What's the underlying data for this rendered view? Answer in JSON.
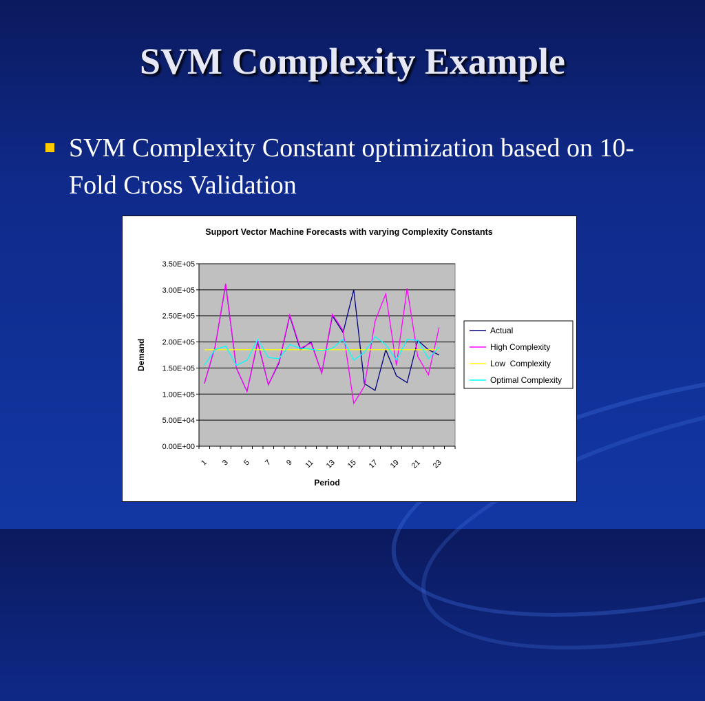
{
  "slide": {
    "title": "SVM Complexity Example",
    "bullets": [
      "SVM Complexity Constant optimization based on 10-Fold Cross Validation"
    ],
    "bullet_color": "#ffcc00"
  },
  "chart_data": {
    "type": "line",
    "title": "Support Vector Machine Forecasts with varying Complexity Constants",
    "xlabel": "Period",
    "ylabel": "Demand",
    "x": [
      1,
      2,
      3,
      4,
      5,
      6,
      7,
      8,
      9,
      10,
      11,
      12,
      13,
      14,
      15,
      16,
      17,
      18,
      19,
      20,
      21,
      22,
      23,
      24
    ],
    "x_tick_labels": [
      "1",
      "3",
      "5",
      "7",
      "9",
      "11",
      "13",
      "15",
      "17",
      "19",
      "21",
      "23"
    ],
    "y_tick_labels": [
      "0.00E+00",
      "5.00E+04",
      "1.00E+05",
      "1.50E+05",
      "2.00E+05",
      "2.50E+05",
      "3.00E+05",
      "3.50E+05"
    ],
    "ylim": [
      0,
      350000
    ],
    "grid": true,
    "plot_background": "#c0c0c0",
    "legend_position": "right",
    "series": [
      {
        "name": "Actual",
        "color": "#000080",
        "values": [
          120000,
          190000,
          310000,
          150000,
          105000,
          200000,
          118000,
          160000,
          250000,
          185000,
          200000,
          140000,
          250000,
          218000,
          300000,
          120000,
          107000,
          185000,
          135000,
          122000,
          203000,
          185000,
          175000,
          null
        ]
      },
      {
        "name": "High Complexity",
        "color": "#ff00ff",
        "values": [
          120000,
          190000,
          312000,
          150000,
          105000,
          202000,
          118000,
          162000,
          252000,
          188000,
          198000,
          140000,
          253000,
          222000,
          82000,
          115000,
          240000,
          292000,
          155000,
          303000,
          172000,
          137000,
          228000,
          null
        ]
      },
      {
        "name": "Low  Complexity",
        "color": "#ffff00",
        "values": [
          185000,
          185000,
          185000,
          185000,
          185000,
          185000,
          185000,
          185000,
          185000,
          185000,
          185000,
          185000,
          185000,
          185000,
          185000,
          185000,
          185000,
          185000,
          185000,
          185000,
          185000,
          185000,
          185000,
          null
        ]
      },
      {
        "name": "Optimal Complexity",
        "color": "#00ffff",
        "values": [
          155000,
          185000,
          192000,
          155000,
          165000,
          205000,
          170000,
          168000,
          195000,
          188000,
          186000,
          183000,
          188000,
          205000,
          165000,
          180000,
          210000,
          195000,
          165000,
          205000,
          203000,
          168000,
          190000,
          null
        ]
      }
    ]
  }
}
